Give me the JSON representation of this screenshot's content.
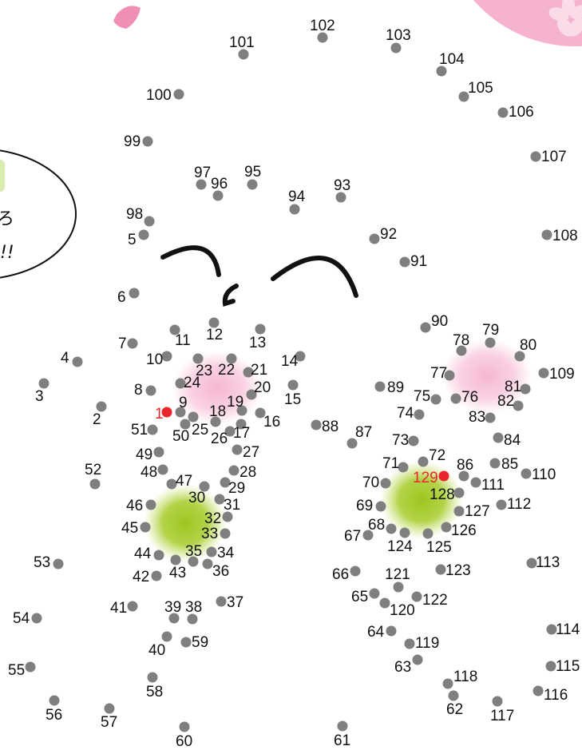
{
  "colors": {
    "dot": "#7f7f7f",
    "start": "#e8262b",
    "label": "#111111",
    "start_label": "#e8262b",
    "blush_pink": "#f6b3cf",
    "blush_green": "#a6cc2a",
    "sakura": "#f08fb6",
    "stroke": "#111111"
  },
  "speech_bubble": {
    "line1": "ろ",
    "line2": "!!"
  },
  "dots": [
    {
      "n": 1,
      "start": true
    },
    {
      "n": 2
    },
    {
      "n": 3
    },
    {
      "n": 4
    },
    {
      "n": 5
    },
    {
      "n": 6
    },
    {
      "n": 7
    },
    {
      "n": 8
    },
    {
      "n": 9
    },
    {
      "n": 10
    },
    {
      "n": 11
    },
    {
      "n": 12
    },
    {
      "n": 13
    },
    {
      "n": 14
    },
    {
      "n": 15
    },
    {
      "n": 16
    },
    {
      "n": 17
    },
    {
      "n": 18
    },
    {
      "n": 19
    },
    {
      "n": 20
    },
    {
      "n": 21
    },
    {
      "n": 22
    },
    {
      "n": 23
    },
    {
      "n": 24
    },
    {
      "n": 25
    },
    {
      "n": 26
    },
    {
      "n": 27
    },
    {
      "n": 28
    },
    {
      "n": 29
    },
    {
      "n": 30
    },
    {
      "n": 31
    },
    {
      "n": 32
    },
    {
      "n": 33
    },
    {
      "n": 34
    },
    {
      "n": 35
    },
    {
      "n": 36
    },
    {
      "n": 37
    },
    {
      "n": 38
    },
    {
      "n": 39
    },
    {
      "n": 40
    },
    {
      "n": 41
    },
    {
      "n": 42
    },
    {
      "n": 43
    },
    {
      "n": 44
    },
    {
      "n": 45
    },
    {
      "n": 46
    },
    {
      "n": 47
    },
    {
      "n": 48
    },
    {
      "n": 49
    },
    {
      "n": 50
    },
    {
      "n": 51
    },
    {
      "n": 52
    },
    {
      "n": 53
    },
    {
      "n": 54
    },
    {
      "n": 55
    },
    {
      "n": 56
    },
    {
      "n": 57
    },
    {
      "n": 58
    },
    {
      "n": 59
    },
    {
      "n": 60
    },
    {
      "n": 61
    },
    {
      "n": 62
    },
    {
      "n": 63
    },
    {
      "n": 64
    },
    {
      "n": 65
    },
    {
      "n": 66
    },
    {
      "n": 67
    },
    {
      "n": 68
    },
    {
      "n": 69
    },
    {
      "n": 70
    },
    {
      "n": 71
    },
    {
      "n": 72
    },
    {
      "n": 73
    },
    {
      "n": 74
    },
    {
      "n": 75
    },
    {
      "n": 76
    },
    {
      "n": 77
    },
    {
      "n": 78
    },
    {
      "n": 79
    },
    {
      "n": 80
    },
    {
      "n": 81
    },
    {
      "n": 82
    },
    {
      "n": 83
    },
    {
      "n": 84
    },
    {
      "n": 85
    },
    {
      "n": 86
    },
    {
      "n": 87
    },
    {
      "n": 88
    },
    {
      "n": 89
    },
    {
      "n": 90
    },
    {
      "n": 91
    },
    {
      "n": 92
    },
    {
      "n": 93
    },
    {
      "n": 94
    },
    {
      "n": 95
    },
    {
      "n": 96
    },
    {
      "n": 97
    },
    {
      "n": 98
    },
    {
      "n": 99
    },
    {
      "n": 100
    },
    {
      "n": 101
    },
    {
      "n": 102
    },
    {
      "n": 103
    },
    {
      "n": 104
    },
    {
      "n": 105
    },
    {
      "n": 106
    },
    {
      "n": 107
    },
    {
      "n": 108
    },
    {
      "n": 109
    },
    {
      "n": 110
    },
    {
      "n": 111
    },
    {
      "n": 112
    },
    {
      "n": 113
    },
    {
      "n": 114
    },
    {
      "n": 115
    },
    {
      "n": 116
    },
    {
      "n": 117
    },
    {
      "n": 118
    },
    {
      "n": 119
    },
    {
      "n": 120
    },
    {
      "n": 121
    },
    {
      "n": 122
    },
    {
      "n": 123
    },
    {
      "n": 124
    },
    {
      "n": 125
    },
    {
      "n": 126
    },
    {
      "n": 127
    },
    {
      "n": 128
    },
    {
      "n": 129,
      "end": true
    }
  ]
}
